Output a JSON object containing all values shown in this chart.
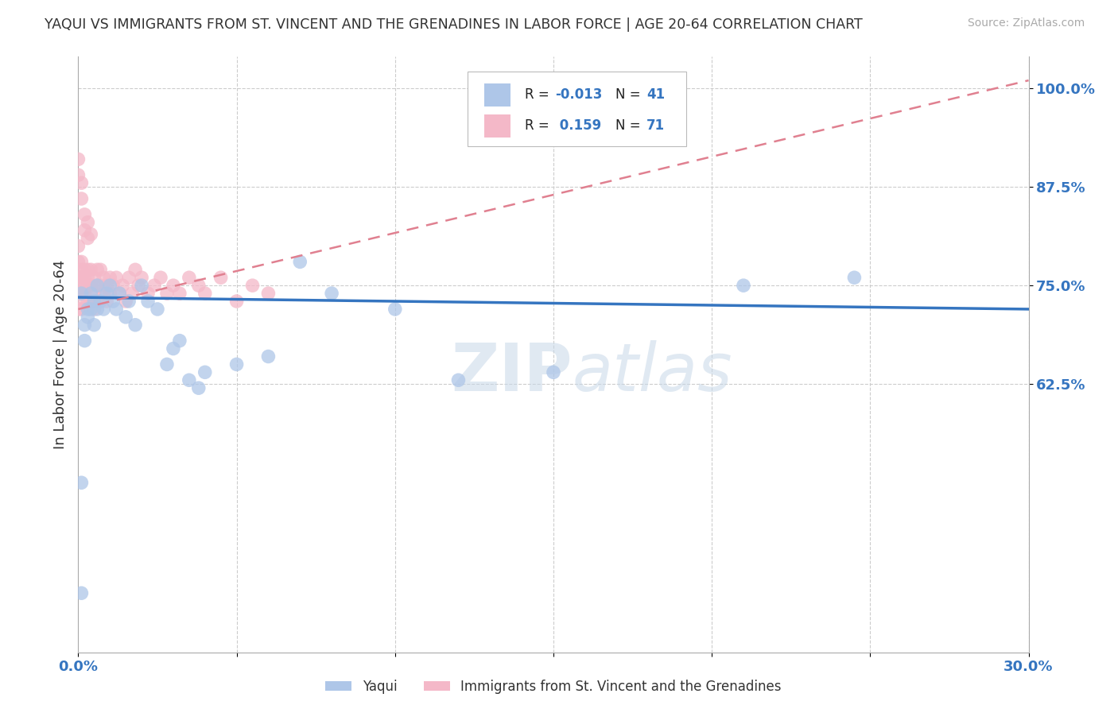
{
  "title": "YAQUI VS IMMIGRANTS FROM ST. VINCENT AND THE GRENADINES IN LABOR FORCE | AGE 20-64 CORRELATION CHART",
  "source": "Source: ZipAtlas.com",
  "ylabel": "In Labor Force | Age 20-64",
  "xlim": [
    0.0,
    0.3
  ],
  "ylim": [
    0.285,
    1.04
  ],
  "xticks": [
    0.0,
    0.05,
    0.1,
    0.15,
    0.2,
    0.25,
    0.3
  ],
  "xticklabels": [
    "0.0%",
    "",
    "",
    "",
    "",
    "",
    "30.0%"
  ],
  "yticks": [
    0.625,
    0.75,
    0.875,
    1.0
  ],
  "yticklabels": [
    "62.5%",
    "75.0%",
    "87.5%",
    "100.0%"
  ],
  "grid_color": "#cccccc",
  "background_color": "#ffffff",
  "watermark": "ZIPatlas",
  "legend_r1": "R = -0.013",
  "legend_n1": "N = 41",
  "legend_r2": "R =  0.159",
  "legend_n2": "N = 71",
  "series1_color": "#aec6e8",
  "series2_color": "#f4b8c8",
  "trend1_color": "#3575c0",
  "trend2_color": "#e08090",
  "series1_label": "Yaqui",
  "series2_label": "Immigrants from St. Vincent and the Grenadines",
  "yaqui_x": [
    0.001,
    0.002,
    0.003,
    0.004,
    0.005,
    0.006,
    0.007,
    0.008,
    0.009,
    0.01,
    0.011,
    0.012,
    0.013,
    0.015,
    0.016,
    0.018,
    0.02,
    0.022,
    0.025,
    0.028,
    0.03,
    0.032,
    0.035,
    0.038,
    0.04,
    0.05,
    0.06,
    0.07,
    0.08,
    0.1,
    0.12,
    0.15,
    0.21,
    0.245,
    0.001,
    0.002,
    0.003,
    0.004,
    0.005,
    0.006,
    0.001
  ],
  "yaqui_y": [
    0.5,
    0.68,
    0.72,
    0.74,
    0.73,
    0.75,
    0.73,
    0.72,
    0.74,
    0.75,
    0.73,
    0.72,
    0.74,
    0.71,
    0.73,
    0.7,
    0.75,
    0.73,
    0.72,
    0.65,
    0.67,
    0.68,
    0.63,
    0.62,
    0.64,
    0.65,
    0.66,
    0.78,
    0.74,
    0.72,
    0.63,
    0.64,
    0.75,
    0.76,
    0.36,
    0.7,
    0.71,
    0.72,
    0.7,
    0.72,
    0.74
  ],
  "svg_x": [
    0.0,
    0.0,
    0.0,
    0.0,
    0.0,
    0.001,
    0.001,
    0.001,
    0.001,
    0.001,
    0.001,
    0.001,
    0.001,
    0.002,
    0.002,
    0.002,
    0.002,
    0.002,
    0.003,
    0.003,
    0.003,
    0.003,
    0.004,
    0.004,
    0.004,
    0.005,
    0.005,
    0.005,
    0.006,
    0.006,
    0.006,
    0.007,
    0.007,
    0.008,
    0.008,
    0.009,
    0.009,
    0.01,
    0.01,
    0.011,
    0.012,
    0.013,
    0.014,
    0.015,
    0.016,
    0.017,
    0.018,
    0.019,
    0.02,
    0.022,
    0.024,
    0.026,
    0.028,
    0.03,
    0.032,
    0.035,
    0.038,
    0.04,
    0.045,
    0.05,
    0.055,
    0.06,
    0.0,
    0.0,
    0.001,
    0.001,
    0.002,
    0.002,
    0.003,
    0.003,
    0.004
  ],
  "svg_y": [
    0.72,
    0.74,
    0.76,
    0.78,
    0.8,
    0.74,
    0.76,
    0.78,
    0.75,
    0.77,
    0.72,
    0.74,
    0.76,
    0.75,
    0.77,
    0.73,
    0.76,
    0.74,
    0.75,
    0.77,
    0.73,
    0.76,
    0.75,
    0.77,
    0.73,
    0.74,
    0.76,
    0.72,
    0.75,
    0.77,
    0.73,
    0.75,
    0.77,
    0.74,
    0.76,
    0.73,
    0.75,
    0.76,
    0.74,
    0.75,
    0.76,
    0.74,
    0.75,
    0.73,
    0.76,
    0.74,
    0.77,
    0.75,
    0.76,
    0.74,
    0.75,
    0.76,
    0.74,
    0.75,
    0.74,
    0.76,
    0.75,
    0.74,
    0.76,
    0.73,
    0.75,
    0.74,
    0.91,
    0.89,
    0.88,
    0.86,
    0.84,
    0.82,
    0.81,
    0.83,
    0.815
  ],
  "trend1_y_at_0": 0.735,
  "trend1_y_at_030": 0.72,
  "trend2_y_at_0": 0.72,
  "trend2_y_at_030": 1.01
}
